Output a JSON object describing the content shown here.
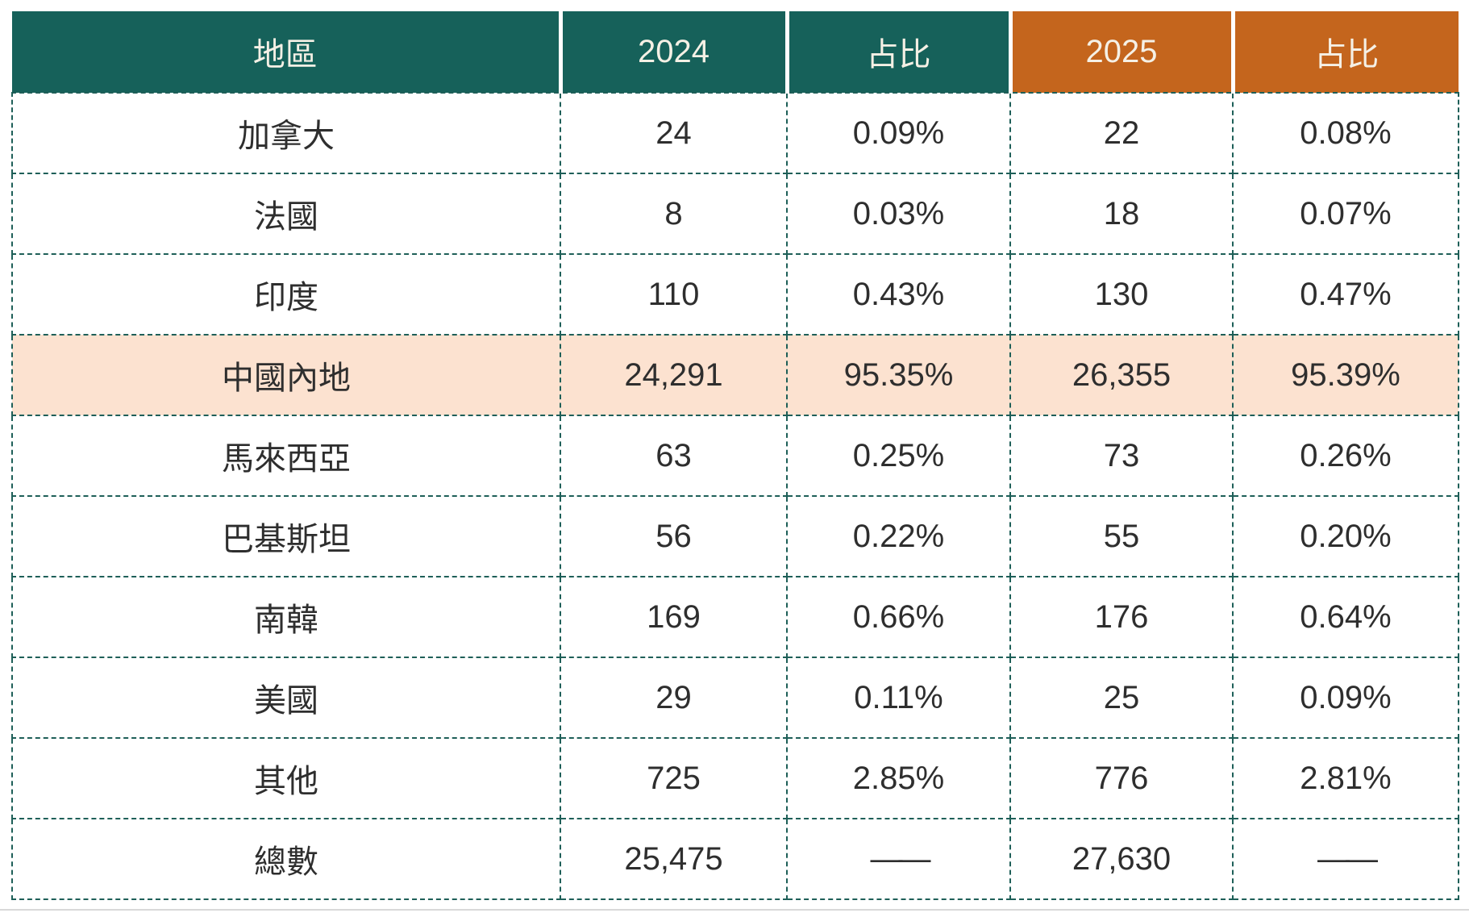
{
  "colors": {
    "header_teal": "#16615a",
    "header_orange": "#c4651d",
    "highlight_row_bg": "#fce2d0",
    "border_dashed_teal": "#1e5f58",
    "header_text": "#f5f0e5",
    "body_text": "#2e2e2e",
    "bottom_rule_gray": "#d9d9d9"
  },
  "table": {
    "columns": [
      {
        "label": "地區",
        "theme": "teal"
      },
      {
        "label": "2024",
        "theme": "teal"
      },
      {
        "label": "占比",
        "theme": "teal"
      },
      {
        "label": "2025",
        "theme": "orange"
      },
      {
        "label": "占比",
        "theme": "orange"
      }
    ],
    "row_keys": [
      "region",
      "v2024",
      "p2024",
      "v2025",
      "p2025"
    ],
    "rows": [
      {
        "region": "加拿大",
        "v2024": "24",
        "p2024": "0.09%",
        "v2025": "22",
        "p2025": "0.08%",
        "highlight": false
      },
      {
        "region": "法國",
        "v2024": "8",
        "p2024": "0.03%",
        "v2025": "18",
        "p2025": "0.07%",
        "highlight": false
      },
      {
        "region": "印度",
        "v2024": "110",
        "p2024": "0.43%",
        "v2025": "130",
        "p2025": "0.47%",
        "highlight": false
      },
      {
        "region": "中國內地",
        "v2024": "24,291",
        "p2024": "95.35%",
        "v2025": "26,355",
        "p2025": "95.39%",
        "highlight": true
      },
      {
        "region": "馬來西亞",
        "v2024": "63",
        "p2024": "0.25%",
        "v2025": "73",
        "p2025": "0.26%",
        "highlight": false
      },
      {
        "region": "巴基斯坦",
        "v2024": "56",
        "p2024": "0.22%",
        "v2025": "55",
        "p2025": "0.20%",
        "highlight": false
      },
      {
        "region": "南韓",
        "v2024": "169",
        "p2024": "0.66%",
        "v2025": "176",
        "p2025": "0.64%",
        "highlight": false
      },
      {
        "region": "美國",
        "v2024": "29",
        "p2024": "0.11%",
        "v2025": "25",
        "p2025": "0.09%",
        "highlight": false
      },
      {
        "region": "其他",
        "v2024": "725",
        "p2024": "2.85%",
        "v2025": "776",
        "p2025": "2.81%",
        "highlight": false
      },
      {
        "region": "總數",
        "v2024": "25,475",
        "p2024": "——",
        "v2025": "27,630",
        "p2025": "——",
        "highlight": false
      }
    ]
  },
  "chart_data": {
    "type": "table",
    "title": "",
    "columns": [
      "地區",
      "2024",
      "占比",
      "2025",
      "占比"
    ],
    "rows": [
      [
        "加拿大",
        24,
        "0.09%",
        22,
        "0.08%"
      ],
      [
        "法國",
        8,
        "0.03%",
        18,
        "0.07%"
      ],
      [
        "印度",
        110,
        "0.43%",
        130,
        "0.47%"
      ],
      [
        "中國內地",
        24291,
        "95.35%",
        26355,
        "95.39%"
      ],
      [
        "馬來西亞",
        63,
        "0.25%",
        73,
        "0.26%"
      ],
      [
        "巴基斯坦",
        56,
        "0.22%",
        55,
        "0.20%"
      ],
      [
        "南韓",
        169,
        "0.66%",
        176,
        "0.64%"
      ],
      [
        "美國",
        29,
        "0.11%",
        25,
        "0.09%"
      ],
      [
        "其他",
        725,
        "2.85%",
        776,
        "2.81%"
      ],
      [
        "總數",
        25475,
        "——",
        27630,
        "——"
      ]
    ],
    "highlighted_row": "中國內地",
    "totals_row": "總數",
    "layout": {
      "header_colors": [
        "teal",
        "teal",
        "teal",
        "orange",
        "orange"
      ],
      "grid": "dashed"
    }
  }
}
